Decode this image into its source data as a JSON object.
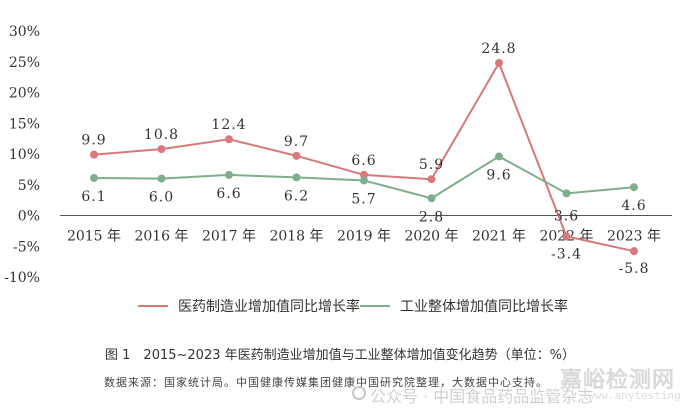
{
  "chart_data": {
    "type": "line",
    "categories": [
      "2015 年",
      "2016 年",
      "2017 年",
      "2018 年",
      "2019 年",
      "2020 年",
      "2021 年",
      "2022 年",
      "2023 年"
    ],
    "y_ticks": [
      "30%",
      "25%",
      "20%",
      "15%",
      "10%",
      "5%",
      "0%",
      "-5%",
      "-10%"
    ],
    "ylim": [
      -10,
      30
    ],
    "grid": false,
    "legend_position": "bottom",
    "series": [
      {
        "name": "医药制造业增加值同比增长率",
        "color": "#d9777a",
        "values": [
          9.9,
          10.8,
          12.4,
          9.7,
          6.6,
          5.9,
          24.8,
          -3.4,
          -5.8
        ],
        "labels": [
          "9.9",
          "10.8",
          "12.4",
          "9.7",
          "6.6",
          "5.9",
          "24.8",
          "-3.4",
          "-5.8"
        ]
      },
      {
        "name": "工业整体增加值同比增长率",
        "color": "#7fae8c",
        "values": [
          6.1,
          6.0,
          6.6,
          6.2,
          5.7,
          2.8,
          9.6,
          3.6,
          4.6
        ],
        "labels": [
          "6.1",
          "6.0",
          "6.6",
          "6.2",
          "5.7",
          "2.8",
          "9.6",
          "3.6",
          "4.6"
        ]
      }
    ],
    "caption": "图 1　2015~2023 年医药制造业增加值与工业整体增加值变化趋势（单位：%）",
    "source": "数据来源：国家统计局。中国健康传媒集团健康中国研究院整理，大数据中心支持。"
  },
  "watermark": {
    "text": "公众号 · 中国食品药品监管杂志",
    "logo_text": "嘉峪检测网",
    "logo_url_text": "www.anytesting.com"
  }
}
